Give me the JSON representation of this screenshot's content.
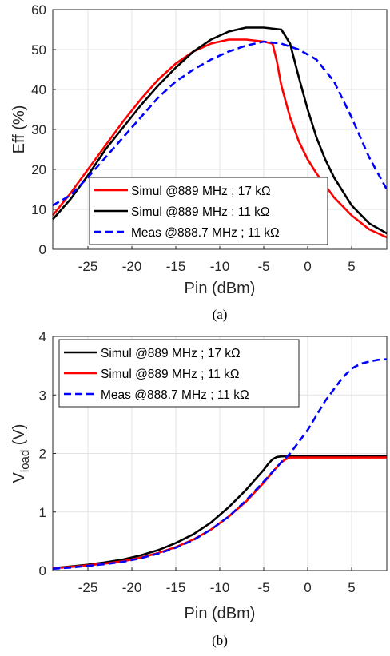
{
  "chart_data": [
    {
      "type": "line",
      "caption": "(a)",
      "xlabel": "Pin (dBm)",
      "ylabel": "Eff (%)",
      "xlim": [
        -29,
        9
      ],
      "ylim": [
        0,
        60
      ],
      "xticks": [
        -25,
        -20,
        -15,
        -10,
        -5,
        0,
        5
      ],
      "yticks": [
        0,
        10,
        20,
        30,
        40,
        50,
        60
      ],
      "grid": true,
      "legend_position": "bottom-center",
      "series": [
        {
          "name": "Simul @889 MHz ; 17 kΩ",
          "color": "#ff0000",
          "style": "solid",
          "x": [
            -29,
            -27,
            -25,
            -23,
            -21,
            -19,
            -17,
            -15,
            -13,
            -11,
            -9,
            -7,
            -5,
            -4,
            -3.5,
            -3,
            -2,
            -1,
            0,
            1,
            2,
            3,
            5,
            7,
            9
          ],
          "y": [
            8.5,
            14,
            20,
            26,
            32,
            37.5,
            42.5,
            46.5,
            49.5,
            51.5,
            52.5,
            52.5,
            52,
            51.5,
            47,
            41,
            33,
            27,
            22.5,
            19,
            16,
            13,
            8.5,
            5,
            3
          ]
        },
        {
          "name": "Simul @889 MHz ; 11 kΩ",
          "color": "#000000",
          "style": "solid",
          "x": [
            -29,
            -27,
            -25,
            -23,
            -21,
            -19,
            -17,
            -15,
            -13,
            -11,
            -9,
            -7,
            -5,
            -3,
            -2,
            -1,
            0,
            1,
            2,
            3,
            5,
            7,
            9
          ],
          "y": [
            7.5,
            12.5,
            18.5,
            25,
            30.5,
            36,
            41,
            45.5,
            49.5,
            52.5,
            54.5,
            55.5,
            55.5,
            55,
            51.5,
            43,
            35,
            28,
            22.5,
            18,
            11,
            6.5,
            4
          ]
        },
        {
          "name": "Meas @888.7 MHz ; 11 kΩ",
          "color": "#0000ff",
          "style": "dashed",
          "x": [
            -29,
            -27,
            -25,
            -23,
            -21,
            -19,
            -17,
            -15,
            -13,
            -11,
            -9,
            -7,
            -5,
            -3,
            -1,
            1,
            3,
            5,
            7,
            9
          ],
          "y": [
            11,
            13.5,
            18,
            23,
            28,
            33,
            38,
            42,
            45,
            47.5,
            49.5,
            51,
            52,
            51.5,
            50,
            47.5,
            42,
            33,
            23,
            15
          ]
        }
      ]
    },
    {
      "type": "line",
      "caption": "(b)",
      "xlabel": "Pin (dBm)",
      "ylabel": "V",
      "ylabel_sub": "load",
      "ylabel_unit": " (V)",
      "xlim": [
        -29,
        9
      ],
      "ylim": [
        0,
        4
      ],
      "xticks": [
        -25,
        -20,
        -15,
        -10,
        -5,
        0,
        5
      ],
      "yticks": [
        0,
        1,
        2,
        3,
        4
      ],
      "grid": true,
      "legend_position": "top-left",
      "series": [
        {
          "name": "Simul @889 MHz ; 17 kΩ",
          "color": "#000000",
          "style": "solid",
          "x": [
            -29,
            -27,
            -25,
            -23,
            -21,
            -19,
            -17,
            -15,
            -13,
            -11,
            -9,
            -7,
            -5,
            -4.5,
            -4,
            -3.5,
            -3,
            0,
            3,
            6,
            9
          ],
          "y": [
            0.04,
            0.07,
            0.1,
            0.14,
            0.19,
            0.26,
            0.35,
            0.47,
            0.62,
            0.82,
            1.08,
            1.38,
            1.72,
            1.82,
            1.9,
            1.94,
            1.95,
            1.96,
            1.96,
            1.96,
            1.95
          ]
        },
        {
          "name": "Simul @889 MHz ; 11 kΩ",
          "color": "#ff0000",
          "style": "solid",
          "x": [
            -29,
            -27,
            -25,
            -23,
            -21,
            -19,
            -17,
            -15,
            -13,
            -11,
            -9,
            -7,
            -5,
            -4,
            -3,
            -2.5,
            -2,
            0,
            3,
            6,
            9
          ],
          "y": [
            0.04,
            0.06,
            0.09,
            0.12,
            0.16,
            0.22,
            0.3,
            0.4,
            0.53,
            0.7,
            0.92,
            1.18,
            1.5,
            1.68,
            1.85,
            1.9,
            1.93,
            1.93,
            1.93,
            1.93,
            1.93
          ]
        },
        {
          "name": "Meas @888.7 MHz ; 11 kΩ",
          "color": "#0000ff",
          "style": "dashed",
          "x": [
            -29,
            -27,
            -25,
            -23,
            -21,
            -19,
            -17,
            -15,
            -13,
            -11,
            -9,
            -7,
            -5,
            -3,
            -2,
            -1,
            0,
            1,
            2,
            3,
            4,
            5,
            6,
            7,
            8,
            9
          ],
          "y": [
            0.03,
            0.05,
            0.08,
            0.11,
            0.15,
            0.21,
            0.29,
            0.39,
            0.52,
            0.7,
            0.92,
            1.2,
            1.52,
            1.85,
            2.0,
            2.2,
            2.4,
            2.65,
            2.9,
            3.1,
            3.3,
            3.45,
            3.53,
            3.57,
            3.6,
            3.61
          ]
        }
      ]
    }
  ]
}
